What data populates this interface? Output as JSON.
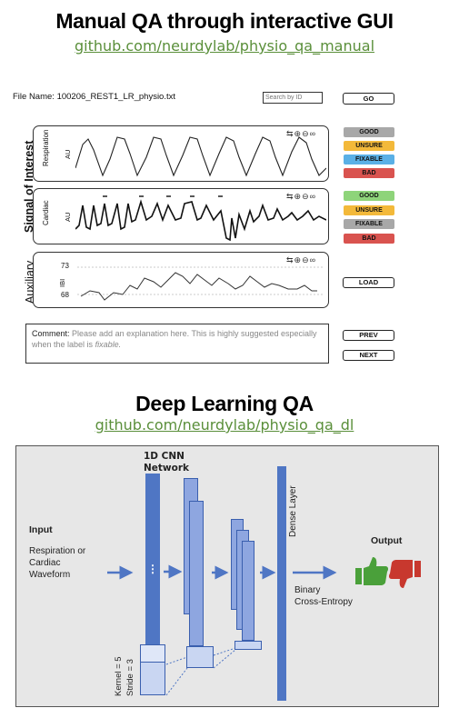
{
  "manual": {
    "title": "Manual QA through interactive GUI",
    "link": "github.com/neurdylab/physio_qa_manual",
    "file_label": "File Name: 100206_REST1_LR_physio.txt",
    "search_placeholder": "Search by ID",
    "go_label": "GO",
    "signal_of_interest": "Signal of Interest",
    "auxiliary": "Auxiliary",
    "respiration": "Respiration",
    "cardiac": "Cardiac",
    "au": "AU",
    "ibi": "IBI",
    "ibi_high": "73",
    "ibi_low": "68",
    "resp_buttons": [
      "GOOD",
      "UNSURE",
      "FIXABLE",
      "BAD"
    ],
    "card_buttons": [
      "GOOD",
      "UNSURE",
      "FIXABLE",
      "BAD"
    ],
    "load_label": "LOAD",
    "comment_label": "Comment:",
    "comment_text": "Please add an explanation here. This is highly suggested especially when the label is",
    "comment_emph": "fixable.",
    "prev_label": "PREV",
    "next_label": "NEXT",
    "tool_icons": [
      "pan-icon",
      "zoom-in-icon",
      "zoom-out-icon",
      "link-icon"
    ]
  },
  "colors": {
    "good_gray": "#a8a8a8",
    "good_green": "#8ed47a",
    "unsure": "#f3b93a",
    "fixable_blue": "#5ab0e6",
    "fixable_gray": "#a8a8a8",
    "bad": "#d9534f",
    "link_green": "#5a8f3a",
    "block_blue": "#4f76c4",
    "thumb_up": "#4aa03a",
    "thumb_down": "#c8382e"
  },
  "dl": {
    "title": "Deep Learning QA",
    "link": "github.com/neurdylab/physio_qa_dl",
    "network_label_1": "1D CNN",
    "network_label_2": "Network",
    "input_label": "Input",
    "input_desc_1": "Respiration or",
    "input_desc_2": "Cardiac",
    "input_desc_3": "Waveform",
    "dense_layer": "Dense Layer",
    "output_label": "Output",
    "loss_1": "Binary",
    "loss_2": "Cross-Entropy",
    "kernel": "Kernel = 5",
    "stride": "Stride = 3",
    "ellipsis": "⋮"
  }
}
